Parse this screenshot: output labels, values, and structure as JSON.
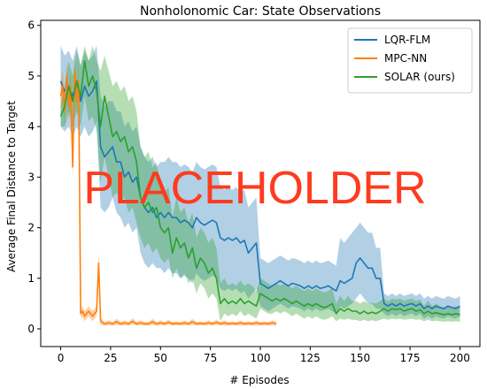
{
  "chart_data": {
    "type": "line",
    "title": "Nonholonomic Car: State Observations",
    "xlabel": "# Episodes",
    "ylabel": "Average Final Distance to Target",
    "xlim": [
      -10,
      210
    ],
    "ylim": [
      -0.35,
      6.1
    ],
    "xticks": [
      0,
      25,
      50,
      75,
      100,
      125,
      150,
      175,
      200
    ],
    "yticks": [
      0,
      1,
      2,
      3,
      4,
      5,
      6
    ],
    "grid": false,
    "legend_position": "top-right",
    "overlay_text": "PLACEHOLDER",
    "series": [
      {
        "name": "LQR-FLM",
        "color": "#1f77b4",
        "x": [
          0,
          2,
          4,
          6,
          8,
          10,
          12,
          14,
          16,
          18,
          20,
          22,
          24,
          26,
          28,
          30,
          32,
          34,
          36,
          38,
          40,
          42,
          44,
          46,
          48,
          50,
          52,
          54,
          56,
          58,
          60,
          62,
          64,
          66,
          68,
          70,
          72,
          74,
          76,
          78,
          80,
          82,
          84,
          86,
          88,
          90,
          92,
          94,
          96,
          98,
          100,
          102,
          104,
          106,
          108,
          110,
          112,
          114,
          116,
          118,
          120,
          122,
          124,
          126,
          128,
          130,
          132,
          134,
          136,
          138,
          140,
          142,
          144,
          146,
          148,
          150,
          152,
          154,
          156,
          158,
          160,
          162,
          164,
          166,
          168,
          170,
          172,
          174,
          176,
          178,
          180,
          182,
          184,
          186,
          188,
          190,
          192,
          194,
          196,
          198,
          200
        ],
        "y": [
          4.9,
          4.7,
          4.8,
          4.6,
          4.9,
          4.5,
          4.8,
          4.6,
          4.7,
          4.9,
          3.6,
          3.4,
          3.5,
          3.6,
          3.3,
          3.3,
          3.0,
          3.1,
          2.9,
          3.0,
          2.6,
          2.4,
          2.3,
          2.4,
          2.2,
          2.3,
          2.2,
          2.3,
          2.2,
          2.2,
          2.1,
          2.15,
          2.1,
          2.0,
          2.2,
          2.1,
          2.05,
          2.1,
          2.15,
          2.1,
          1.8,
          1.75,
          1.8,
          1.75,
          1.8,
          1.7,
          1.75,
          1.5,
          1.6,
          1.7,
          0.9,
          0.85,
          0.8,
          0.85,
          0.9,
          0.95,
          0.9,
          0.85,
          0.9,
          0.88,
          0.85,
          0.8,
          0.85,
          0.8,
          0.85,
          0.8,
          0.82,
          0.85,
          0.8,
          0.75,
          0.95,
          0.9,
          0.95,
          1.0,
          1.3,
          1.4,
          1.3,
          1.2,
          1.2,
          1.0,
          1.0,
          0.5,
          0.45,
          0.5,
          0.45,
          0.5,
          0.45,
          0.48,
          0.5,
          0.45,
          0.5,
          0.4,
          0.45,
          0.4,
          0.45,
          0.42,
          0.4,
          0.45,
          0.42,
          0.4,
          0.45
        ],
        "lower": [
          4.0,
          3.9,
          4.0,
          3.8,
          4.0,
          3.8,
          4.0,
          3.8,
          3.9,
          4.1,
          2.4,
          2.3,
          2.4,
          2.6,
          2.3,
          2.2,
          2.0,
          2.1,
          1.9,
          2.0,
          1.5,
          1.3,
          1.2,
          1.3,
          1.2,
          1.2,
          1.1,
          1.2,
          1.1,
          1.1,
          1.0,
          1.05,
          1.0,
          0.9,
          1.1,
          1.0,
          0.95,
          1.0,
          1.05,
          1.0,
          0.8,
          0.75,
          0.8,
          0.75,
          0.8,
          0.7,
          0.75,
          0.6,
          0.7,
          0.8,
          0.45,
          0.4,
          0.35,
          0.4,
          0.45,
          0.5,
          0.45,
          0.4,
          0.45,
          0.43,
          0.4,
          0.35,
          0.4,
          0.35,
          0.4,
          0.35,
          0.37,
          0.4,
          0.35,
          0.3,
          0.45,
          0.4,
          0.45,
          0.5,
          0.6,
          0.7,
          0.6,
          0.5,
          0.5,
          0.4,
          0.4,
          0.3,
          0.25,
          0.3,
          0.25,
          0.3,
          0.25,
          0.28,
          0.3,
          0.25,
          0.3,
          0.2,
          0.25,
          0.2,
          0.25,
          0.22,
          0.2,
          0.25,
          0.22,
          0.2,
          0.25
        ],
        "upper": [
          5.6,
          5.4,
          5.5,
          5.3,
          5.6,
          5.2,
          5.5,
          5.3,
          5.4,
          5.6,
          4.6,
          4.4,
          4.5,
          4.5,
          4.3,
          4.3,
          4.0,
          4.1,
          3.9,
          4.0,
          3.6,
          3.4,
          3.3,
          3.4,
          3.2,
          3.3,
          3.3,
          3.4,
          3.3,
          3.3,
          3.2,
          3.25,
          3.2,
          3.1,
          3.3,
          3.2,
          3.15,
          3.2,
          3.25,
          3.2,
          2.8,
          2.75,
          2.8,
          2.75,
          2.8,
          2.7,
          2.75,
          2.4,
          2.5,
          2.6,
          1.4,
          1.35,
          1.3,
          1.35,
          1.4,
          1.45,
          1.4,
          1.35,
          1.4,
          1.38,
          1.35,
          1.3,
          1.35,
          1.3,
          1.35,
          1.3,
          1.32,
          1.35,
          1.3,
          1.25,
          1.8,
          1.7,
          1.8,
          1.9,
          2.0,
          2.1,
          2.0,
          1.9,
          1.9,
          1.6,
          1.6,
          0.7,
          0.65,
          0.7,
          0.65,
          0.7,
          0.65,
          0.68,
          0.7,
          0.65,
          0.7,
          0.6,
          0.65,
          0.6,
          0.65,
          0.62,
          0.6,
          0.65,
          0.62,
          0.6,
          0.65
        ]
      },
      {
        "name": "MPC-NN",
        "color": "#ff7f0e",
        "x": [
          0,
          1,
          2,
          3,
          4,
          5,
          6,
          7,
          8,
          9,
          10,
          11,
          12,
          13,
          14,
          15,
          16,
          17,
          18,
          19,
          20,
          22,
          24,
          26,
          28,
          30,
          32,
          34,
          36,
          38,
          40,
          42,
          44,
          46,
          48,
          50,
          52,
          54,
          56,
          58,
          60,
          62,
          64,
          66,
          68,
          70,
          72,
          74,
          76,
          78,
          80,
          82,
          84,
          86,
          88,
          90,
          92,
          94,
          96,
          98,
          100,
          102,
          104,
          106,
          108
        ],
        "y": [
          4.6,
          4.8,
          4.3,
          5.0,
          4.4,
          4.8,
          3.2,
          5.1,
          4.5,
          4.9,
          0.3,
          0.35,
          0.25,
          0.3,
          0.35,
          0.3,
          0.25,
          0.3,
          0.35,
          1.3,
          0.15,
          0.1,
          0.12,
          0.1,
          0.14,
          0.1,
          0.12,
          0.1,
          0.15,
          0.1,
          0.12,
          0.1,
          0.1,
          0.14,
          0.1,
          0.12,
          0.1,
          0.13,
          0.1,
          0.11,
          0.1,
          0.12,
          0.1,
          0.14,
          0.1,
          0.11,
          0.1,
          0.12,
          0.1,
          0.13,
          0.1,
          0.12,
          0.1,
          0.11,
          0.1,
          0.12,
          0.1,
          0.11,
          0.1,
          0.12,
          0.1,
          0.11,
          0.1,
          0.12,
          0.1
        ],
        "lower": [
          4.3,
          4.5,
          4.0,
          4.7,
          4.1,
          4.5,
          3.0,
          4.8,
          4.2,
          4.6,
          0.2,
          0.25,
          0.15,
          0.2,
          0.25,
          0.2,
          0.15,
          0.2,
          0.25,
          1.1,
          0.08,
          0.06,
          0.07,
          0.06,
          0.08,
          0.06,
          0.07,
          0.06,
          0.09,
          0.06,
          0.07,
          0.06,
          0.06,
          0.08,
          0.06,
          0.07,
          0.06,
          0.08,
          0.06,
          0.07,
          0.06,
          0.07,
          0.06,
          0.08,
          0.06,
          0.07,
          0.06,
          0.07,
          0.06,
          0.08,
          0.06,
          0.07,
          0.06,
          0.07,
          0.06,
          0.07,
          0.06,
          0.07,
          0.06,
          0.07,
          0.06,
          0.07,
          0.06,
          0.07,
          0.06
        ],
        "upper": [
          4.9,
          5.1,
          4.6,
          5.3,
          4.7,
          5.1,
          3.4,
          5.4,
          4.8,
          5.2,
          0.4,
          0.45,
          0.35,
          0.4,
          0.45,
          0.4,
          0.35,
          0.4,
          0.45,
          1.5,
          0.22,
          0.14,
          0.17,
          0.14,
          0.2,
          0.14,
          0.17,
          0.14,
          0.21,
          0.14,
          0.17,
          0.14,
          0.14,
          0.2,
          0.14,
          0.17,
          0.14,
          0.18,
          0.14,
          0.15,
          0.14,
          0.17,
          0.14,
          0.2,
          0.14,
          0.15,
          0.14,
          0.17,
          0.14,
          0.18,
          0.14,
          0.17,
          0.14,
          0.15,
          0.14,
          0.17,
          0.14,
          0.15,
          0.14,
          0.17,
          0.14,
          0.15,
          0.14,
          0.17,
          0.14
        ]
      },
      {
        "name": "SOLAR (ours)",
        "color": "#2ca02c",
        "x": [
          0,
          2,
          4,
          6,
          8,
          10,
          12,
          14,
          16,
          18,
          20,
          22,
          24,
          26,
          28,
          30,
          32,
          34,
          36,
          38,
          40,
          42,
          44,
          46,
          48,
          50,
          52,
          54,
          56,
          58,
          60,
          62,
          64,
          66,
          68,
          70,
          72,
          74,
          76,
          78,
          80,
          82,
          84,
          86,
          88,
          90,
          92,
          94,
          96,
          98,
          100,
          102,
          104,
          106,
          108,
          110,
          112,
          114,
          116,
          118,
          120,
          122,
          124,
          126,
          128,
          130,
          132,
          134,
          136,
          138,
          140,
          142,
          144,
          146,
          148,
          150,
          152,
          154,
          156,
          158,
          160,
          162,
          164,
          166,
          168,
          170,
          172,
          174,
          176,
          178,
          180,
          182,
          184,
          186,
          188,
          190,
          192,
          194,
          196,
          198,
          200
        ],
        "y": [
          4.2,
          4.4,
          4.8,
          4.5,
          4.9,
          4.6,
          5.3,
          4.8,
          5.0,
          4.7,
          4.0,
          4.6,
          4.2,
          3.8,
          3.9,
          3.7,
          3.8,
          3.5,
          3.6,
          3.3,
          2.6,
          2.4,
          2.5,
          2.3,
          2.4,
          2.0,
          1.9,
          2.0,
          1.5,
          1.8,
          1.6,
          1.7,
          1.4,
          1.6,
          1.2,
          1.4,
          1.3,
          1.1,
          1.2,
          1.0,
          0.5,
          0.6,
          0.5,
          0.55,
          0.5,
          0.6,
          0.5,
          0.55,
          0.5,
          0.45,
          0.7,
          0.65,
          0.6,
          0.55,
          0.6,
          0.55,
          0.6,
          0.55,
          0.5,
          0.55,
          0.5,
          0.45,
          0.5,
          0.45,
          0.5,
          0.45,
          0.42,
          0.45,
          0.5,
          0.3,
          0.4,
          0.35,
          0.4,
          0.35,
          0.35,
          0.3,
          0.35,
          0.3,
          0.33,
          0.3,
          0.35,
          0.4,
          0.35,
          0.4,
          0.38,
          0.4,
          0.35,
          0.38,
          0.4,
          0.35,
          0.38,
          0.3,
          0.35,
          0.3,
          0.32,
          0.3,
          0.28,
          0.3,
          0.28,
          0.3,
          0.28
        ],
        "lower": [
          4.0,
          4.0,
          4.3,
          4.0,
          4.3,
          4.0,
          4.6,
          4.1,
          4.2,
          3.9,
          2.9,
          3.4,
          3.0,
          2.6,
          2.7,
          2.5,
          2.6,
          2.3,
          2.4,
          2.1,
          1.8,
          1.6,
          1.7,
          1.5,
          1.6,
          1.4,
          1.3,
          1.4,
          1.0,
          1.2,
          1.0,
          1.1,
          0.9,
          1.0,
          0.7,
          0.9,
          0.8,
          0.6,
          0.7,
          0.6,
          0.15,
          0.3,
          0.25,
          0.3,
          0.25,
          0.35,
          0.25,
          0.3,
          0.25,
          0.2,
          0.4,
          0.35,
          0.3,
          0.3,
          0.35,
          0.3,
          0.35,
          0.3,
          0.25,
          0.3,
          0.25,
          0.2,
          0.25,
          0.2,
          0.25,
          0.2,
          0.18,
          0.2,
          0.25,
          0.15,
          0.2,
          0.18,
          0.2,
          0.18,
          0.18,
          0.15,
          0.18,
          0.15,
          0.17,
          0.15,
          0.18,
          0.2,
          0.18,
          0.2,
          0.19,
          0.2,
          0.18,
          0.19,
          0.2,
          0.18,
          0.19,
          0.15,
          0.18,
          0.15,
          0.16,
          0.15,
          0.14,
          0.15,
          0.14,
          0.15,
          0.14
        ],
        "upper": [
          4.4,
          4.8,
          5.3,
          5.0,
          5.5,
          5.2,
          5.6,
          5.3,
          5.6,
          5.3,
          5.1,
          5.4,
          5.1,
          4.8,
          4.9,
          4.7,
          4.8,
          4.5,
          4.6,
          4.3,
          3.6,
          3.4,
          3.5,
          3.2,
          3.3,
          2.8,
          2.7,
          2.8,
          2.2,
          2.6,
          2.3,
          2.4,
          2.1,
          2.3,
          1.8,
          2.0,
          1.9,
          1.7,
          1.8,
          1.6,
          0.9,
          1.0,
          0.85,
          0.9,
          0.85,
          0.95,
          0.85,
          0.9,
          0.85,
          0.75,
          1.0,
          0.95,
          0.9,
          0.85,
          0.9,
          0.85,
          0.9,
          0.85,
          0.8,
          0.85,
          0.8,
          0.75,
          0.8,
          0.75,
          0.8,
          0.75,
          0.72,
          0.75,
          0.8,
          0.5,
          0.65,
          0.55,
          0.65,
          0.55,
          0.55,
          0.5,
          0.55,
          0.5,
          0.52,
          0.5,
          0.55,
          0.6,
          0.55,
          0.6,
          0.58,
          0.6,
          0.55,
          0.58,
          0.6,
          0.55,
          0.58,
          0.45,
          0.55,
          0.45,
          0.5,
          0.45,
          0.42,
          0.45,
          0.42,
          0.45,
          0.42
        ]
      }
    ]
  }
}
